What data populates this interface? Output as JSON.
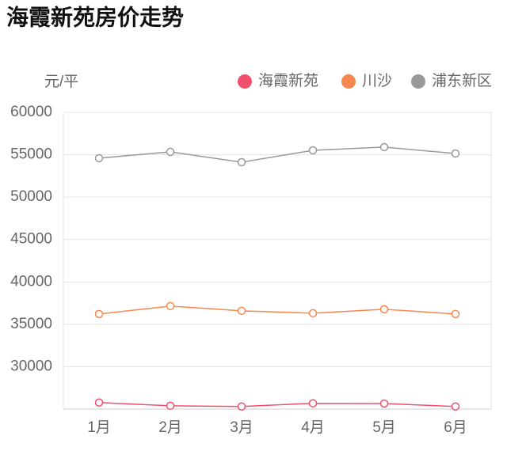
{
  "chart_data": {
    "type": "line",
    "title": "海霞新苑房价走势",
    "y_label": "元/平",
    "categories": [
      "1月",
      "2月",
      "3月",
      "4月",
      "5月",
      "6月"
    ],
    "series": [
      {
        "name": "海霞新苑",
        "color": "#f0506e",
        "values": [
          25770,
          25390,
          25300,
          25680,
          25650,
          25300
        ]
      },
      {
        "name": "川沙",
        "color": "#f5874f",
        "values": [
          36210,
          37150,
          36590,
          36310,
          36770,
          36210
        ]
      },
      {
        "name": "浦东新区",
        "color": "#999999",
        "values": [
          54590,
          55340,
          54120,
          55520,
          55900,
          55150
        ]
      }
    ],
    "ylim": [
      25000,
      60000
    ],
    "yticks": [
      30000,
      35000,
      40000,
      45000,
      50000,
      55000,
      60000
    ],
    "grid": true,
    "legend": "top-right"
  }
}
